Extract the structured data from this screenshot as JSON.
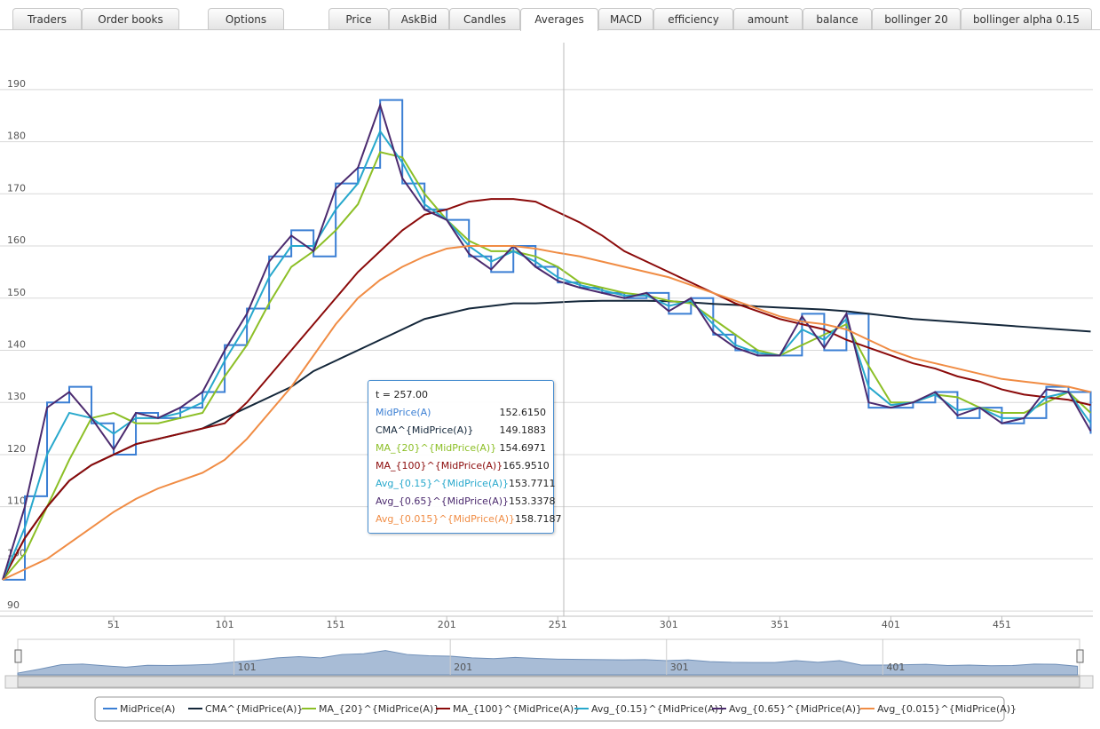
{
  "tabs": [
    "Traders",
    "Order books",
    "Options",
    "Price",
    "AskBid",
    "Candles",
    "Averages",
    "MACD",
    "efficiency",
    "amount",
    "balance",
    "bollinger 20",
    "bollinger alpha 0.15"
  ],
  "active_tab": "Averages",
  "chart_data": {
    "type": "line",
    "x": [
      1,
      11,
      21,
      31,
      41,
      51,
      61,
      71,
      81,
      91,
      101,
      111,
      121,
      131,
      141,
      151,
      161,
      171,
      181,
      191,
      201,
      211,
      221,
      231,
      241,
      251,
      261,
      271,
      281,
      291,
      301,
      311,
      321,
      331,
      341,
      351,
      361,
      371,
      381,
      391,
      401,
      411,
      421,
      431,
      441,
      451,
      461,
      471,
      481,
      491
    ],
    "series": [
      {
        "name": "MidPrice(A)",
        "color": "#3b7fd4",
        "step": true,
        "values": [
          96,
          112,
          130,
          133,
          126,
          120,
          128,
          127,
          129,
          132,
          141,
          148,
          158,
          163,
          158,
          172,
          175,
          188,
          172,
          167,
          165,
          158,
          155,
          160,
          156,
          153,
          152,
          151,
          150,
          151,
          147,
          150,
          143,
          140,
          139,
          139,
          147,
          140,
          147,
          129,
          129,
          130,
          132,
          127,
          129,
          126,
          127,
          133,
          132,
          124
        ]
      },
      {
        "name": "CMA^{MidPrice(A)}",
        "color": "#14273a",
        "values": [
          96,
          104,
          110,
          115,
          118,
          120,
          122,
          123,
          124,
          125,
          127,
          129,
          131,
          133,
          136,
          138,
          140,
          142,
          144,
          146,
          147,
          148,
          148.5,
          149,
          149,
          149.2,
          149.4,
          149.5,
          149.5,
          149.5,
          149.4,
          149.2,
          148.9,
          148.7,
          148.4,
          148.2,
          148,
          147.8,
          147.5,
          147,
          146.5,
          146,
          145.7,
          145.4,
          145.1,
          144.8,
          144.5,
          144.2,
          143.9,
          143.6
        ]
      },
      {
        "name": "MA_{20}^{MidPrice(A)}",
        "color": "#8cbf26",
        "values": [
          96,
          101,
          110,
          119,
          127,
          128,
          126,
          126,
          127,
          128,
          135,
          141,
          149,
          156,
          159,
          163,
          168,
          178,
          177,
          170,
          165,
          161,
          159,
          159,
          158,
          156,
          153,
          152,
          151,
          150.5,
          149.5,
          149,
          146,
          143,
          140,
          139,
          141,
          143,
          145,
          137,
          130,
          130,
          131.5,
          131,
          129,
          128,
          128,
          130,
          132,
          128
        ]
      },
      {
        "name": "MA_{100}^{MidPrice(A)}",
        "color": "#8b0a0a",
        "values": [
          96,
          104,
          110,
          115,
          118,
          120,
          122,
          123,
          124,
          125,
          126,
          130,
          135,
          140,
          145,
          150,
          155,
          159,
          163,
          166,
          167,
          168.5,
          169,
          169,
          168.5,
          166.5,
          164.5,
          162,
          159,
          157,
          155,
          153,
          151,
          149,
          147.5,
          146,
          145,
          144,
          142,
          140.5,
          139,
          137.5,
          136.5,
          135,
          134,
          132.5,
          131.5,
          131,
          130.5,
          129.5
        ]
      },
      {
        "name": "Avg_{0.15}^{MidPrice(A)}",
        "color": "#27a8cc",
        "values": [
          96,
          106,
          120,
          128,
          127,
          124,
          127,
          127,
          128,
          130,
          138,
          145,
          154,
          160,
          160,
          167,
          172,
          182,
          176,
          168,
          165,
          160,
          157,
          159,
          157,
          154,
          152.5,
          151.5,
          150.5,
          150.5,
          148.5,
          149.5,
          145,
          141,
          139.5,
          139,
          144,
          142,
          146,
          133,
          129.5,
          130,
          131.5,
          128.5,
          129,
          127,
          127,
          131,
          132,
          126
        ]
      },
      {
        "name": "Avg_{0.65}^{MidPrice(A)}",
        "color": "#4b2a6e",
        "values": [
          96,
          110,
          129,
          132,
          127,
          121,
          128,
          127,
          129,
          132,
          140,
          147,
          157,
          162,
          159,
          171,
          175,
          187,
          173,
          167,
          165,
          158.5,
          155.5,
          160,
          156,
          153.3,
          152,
          151,
          150,
          151,
          147.5,
          150,
          143.5,
          140.5,
          139,
          139,
          146.5,
          140.5,
          147,
          130,
          129,
          130,
          132,
          127.5,
          129,
          126,
          127,
          132.5,
          132,
          124.5
        ]
      },
      {
        "name": "Avg_{0.015}^{MidPrice(A)}",
        "color": "#f08c44",
        "values": [
          96,
          98,
          100,
          103,
          106,
          109,
          111.5,
          113.5,
          115,
          116.5,
          119,
          123,
          128,
          133,
          139,
          145,
          150,
          153.5,
          156,
          158,
          159.5,
          160,
          160,
          160,
          159.5,
          158.7,
          158,
          157,
          156,
          155,
          154,
          152.5,
          151,
          149.5,
          148,
          146.5,
          145.5,
          145,
          144,
          142,
          140,
          138.5,
          137.5,
          136.5,
          135.5,
          134.5,
          134,
          133.5,
          133,
          132
        ]
      }
    ],
    "xlim": [
      1,
      492
    ],
    "ylim": [
      89,
      199
    ],
    "xticks": [
      51,
      101,
      151,
      201,
      251,
      301,
      351,
      401,
      451
    ],
    "yticks": [
      90,
      100,
      110,
      120,
      130,
      140,
      150,
      160,
      170,
      180,
      190
    ],
    "grid": true,
    "legend": "bottom",
    "navigator": {
      "xticks": [
        101,
        201,
        301,
        401
      ]
    },
    "tooltip": {
      "title": "t = 257.00",
      "values": [
        "152.6150",
        "149.1883",
        "154.6971",
        "165.9510",
        "153.7711",
        "153.3378",
        "158.7187"
      ]
    }
  }
}
